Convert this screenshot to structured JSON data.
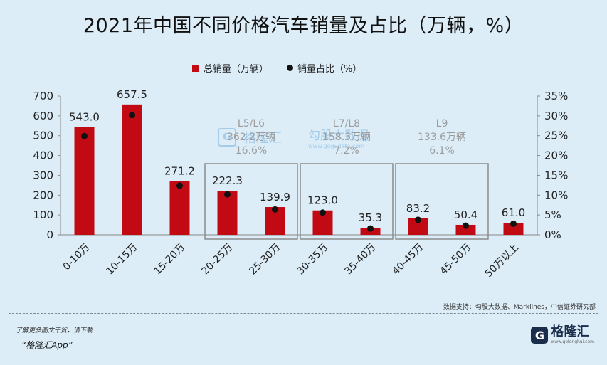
{
  "title": "2021年中国不同价格汽车销量及占比（万辆，%）",
  "legend": {
    "bar_label": "总销量（万辆）",
    "dot_label": "销量占比（%）"
  },
  "source": "数据支持：勾股大数据、Marklines，中信证券研究部",
  "footer": {
    "promo_line1": "了解更多图文干货，请下载",
    "promo_line2": "“格隆汇App”",
    "logo_name": "格隆汇",
    "logo_url": "www.gelonghui.com",
    "logo_mark": "G"
  },
  "watermark": {
    "mark": "G",
    "name": "格隆汇",
    "name2": "勾股大数据",
    "url": "www.gogudata.com"
  },
  "colors": {
    "bar": "#c20a14",
    "dot": "#111111",
    "axis": "#888888",
    "box": "#8c8c8c",
    "group_text": "#9c9c9c"
  },
  "chart_data": {
    "type": "bar",
    "categories": [
      "0-10万",
      "10-15万",
      "15-20万",
      "20-25万",
      "25-30万",
      "30-35万",
      "35-40万",
      "40-45万",
      "45-50万",
      "50万以上"
    ],
    "series": [
      {
        "name": "总销量（万辆）",
        "type": "bar",
        "axis": "left",
        "values": [
          543.0,
          657.5,
          271.2,
          222.3,
          139.9,
          123.0,
          35.3,
          83.2,
          50.4,
          61.0
        ]
      },
      {
        "name": "销量占比（%）",
        "type": "scatter",
        "axis": "right",
        "values": [
          24.9,
          30.2,
          12.4,
          10.2,
          6.4,
          5.6,
          1.6,
          3.8,
          2.3,
          2.8
        ]
      }
    ],
    "data_labels": [
      "543.0",
      "657.5",
      "271.2",
      "222.3",
      "139.9",
      "123.0",
      "35.3",
      "83.2",
      "50.4",
      "61.0"
    ],
    "y_left": {
      "ylim": [
        0,
        700
      ],
      "ticks": [
        "0",
        "100",
        "200",
        "300",
        "400",
        "500",
        "600",
        "700"
      ],
      "tick_values": [
        0,
        100,
        200,
        300,
        400,
        500,
        600,
        700
      ]
    },
    "y_right": {
      "ylim": [
        0,
        35
      ],
      "ticks": [
        "0%",
        "5%",
        "10%",
        "15%",
        "20%",
        "25%",
        "30%",
        "35%"
      ],
      "tick_values": [
        0,
        5,
        10,
        15,
        20,
        25,
        30,
        35
      ]
    },
    "groups": [
      {
        "start": 3,
        "end": 4,
        "lines": [
          "L5/L6",
          "362.2万辆",
          "16.6%"
        ]
      },
      {
        "start": 5,
        "end": 6,
        "lines": [
          "L7/L8",
          "158.3万辆",
          "7.2%"
        ]
      },
      {
        "start": 7,
        "end": 8,
        "lines": [
          "L9",
          "133.6万辆",
          "6.1%"
        ]
      }
    ],
    "grid": false,
    "legend_position": "top-center"
  }
}
